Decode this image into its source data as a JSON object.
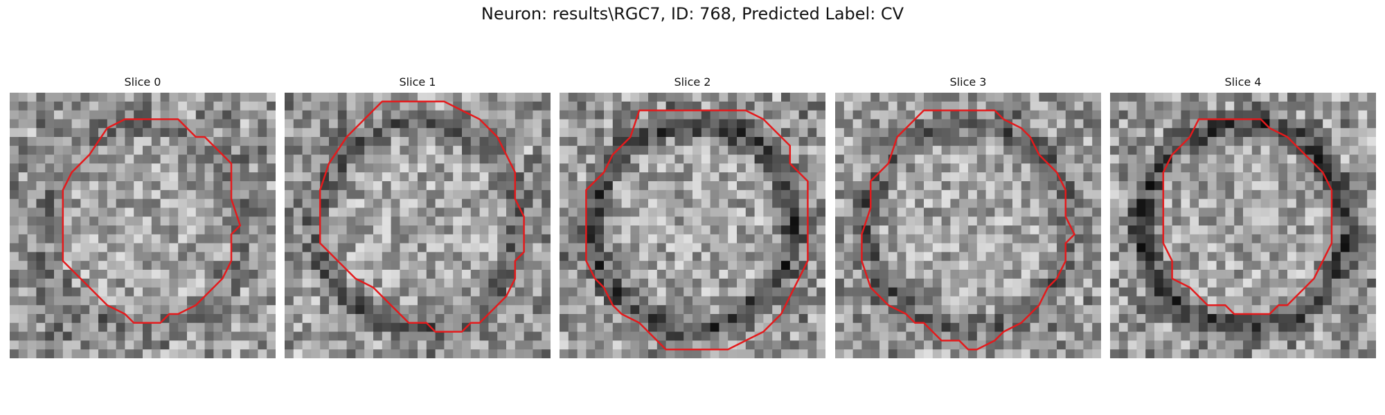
{
  "figure": {
    "title": "Neuron: results\\RGC7, ID: 768, Predicted Label: CV",
    "contour_color": "#e41a1c",
    "colormap": "gray"
  },
  "slices": [
    {
      "label": "Slice 0",
      "ring": "weak",
      "seed": 11
    },
    {
      "label": "Slice 1",
      "ring": "medium",
      "seed": 23
    },
    {
      "label": "Slice 2",
      "ring": "strong",
      "seed": 37
    },
    {
      "label": "Slice 3",
      "ring": "medium",
      "seed": 41
    },
    {
      "label": "Slice 4",
      "ring": "strong",
      "seed": 53
    }
  ]
}
